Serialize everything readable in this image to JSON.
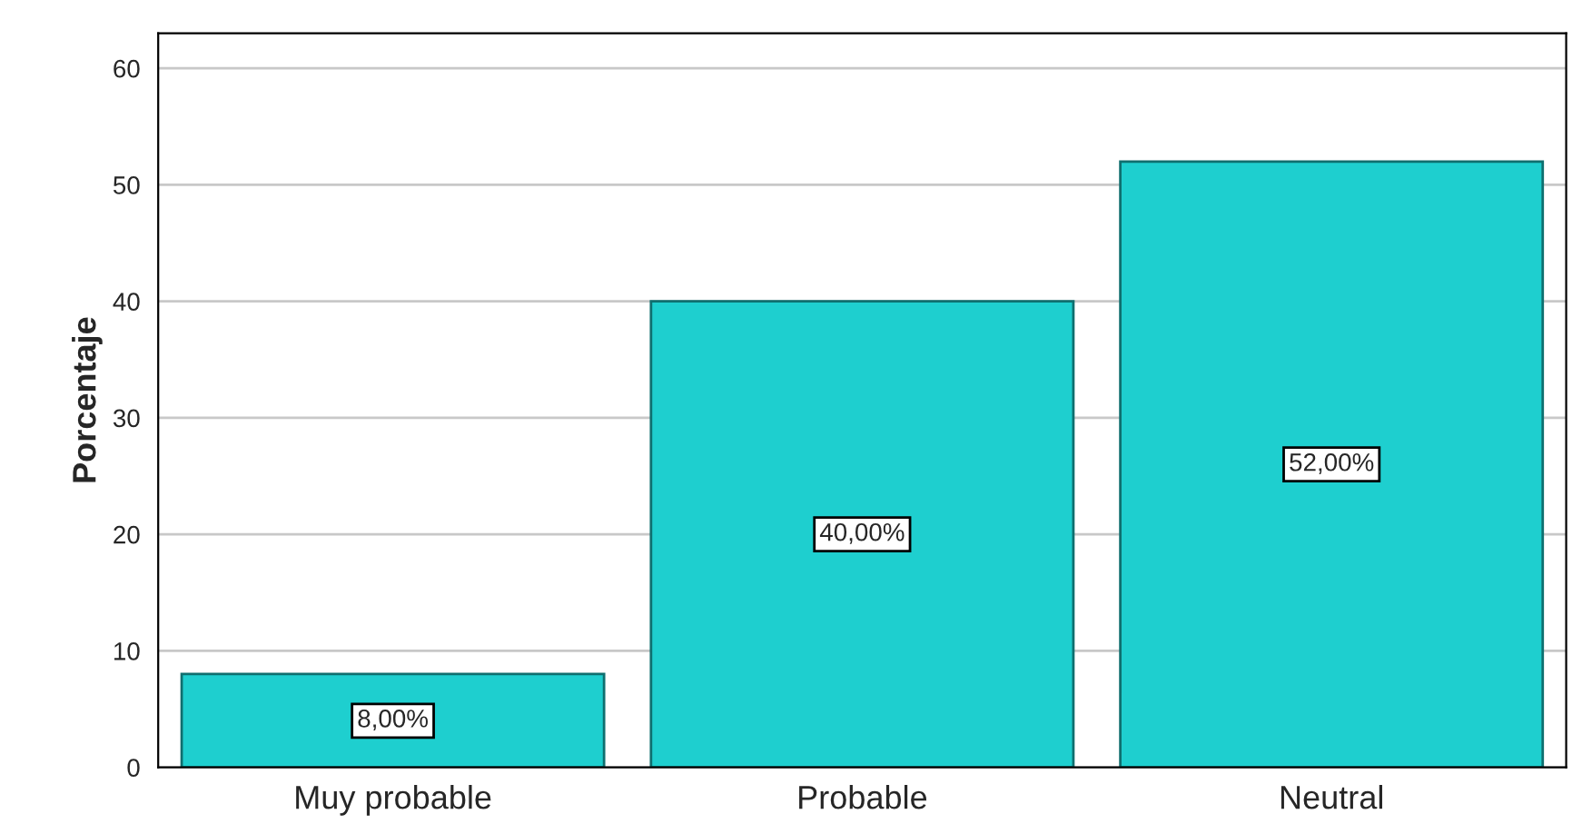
{
  "chart_data": {
    "type": "bar",
    "ylabel": "Porcentaje",
    "categories": [
      "Muy probable",
      "Probable",
      "Neutral"
    ],
    "values": [
      8,
      40,
      52
    ],
    "value_labels": [
      "8,00%",
      "40,00%",
      "52,00%"
    ],
    "color": "#1ecfcf",
    "ylim": [
      0,
      63
    ],
    "yticks": [
      0,
      10,
      20,
      30,
      40,
      50,
      60
    ],
    "grid": "y",
    "legend": false
  }
}
